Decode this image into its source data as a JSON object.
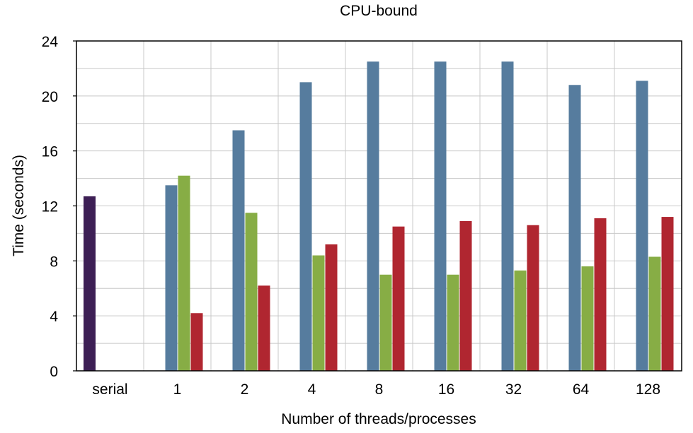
{
  "chart_data": {
    "type": "bar",
    "title": "CPU-bound",
    "xlabel": "Number of threads/processes",
    "ylabel": "Time (seconds)",
    "categories": [
      "serial",
      "1",
      "2",
      "4",
      "8",
      "16",
      "32",
      "64",
      "128"
    ],
    "ylim": [
      0,
      24
    ],
    "yticks": [
      0,
      4,
      8,
      12,
      16,
      20,
      24
    ],
    "grid": true,
    "series": [
      {
        "color": "#3d1f55",
        "values": [
          12.7,
          null,
          null,
          null,
          null,
          null,
          null,
          null,
          null
        ]
      },
      {
        "color": "#567c9e",
        "values": [
          null,
          13.5,
          17.5,
          21.0,
          22.5,
          22.5,
          22.5,
          20.8,
          21.1
        ]
      },
      {
        "color": "#87ad45",
        "values": [
          null,
          14.2,
          11.5,
          8.4,
          7.0,
          7.0,
          7.3,
          7.6,
          8.3
        ]
      },
      {
        "color": "#b02630",
        "values": [
          null,
          4.2,
          6.2,
          9.2,
          10.5,
          10.9,
          10.6,
          11.1,
          11.2
        ]
      }
    ]
  }
}
